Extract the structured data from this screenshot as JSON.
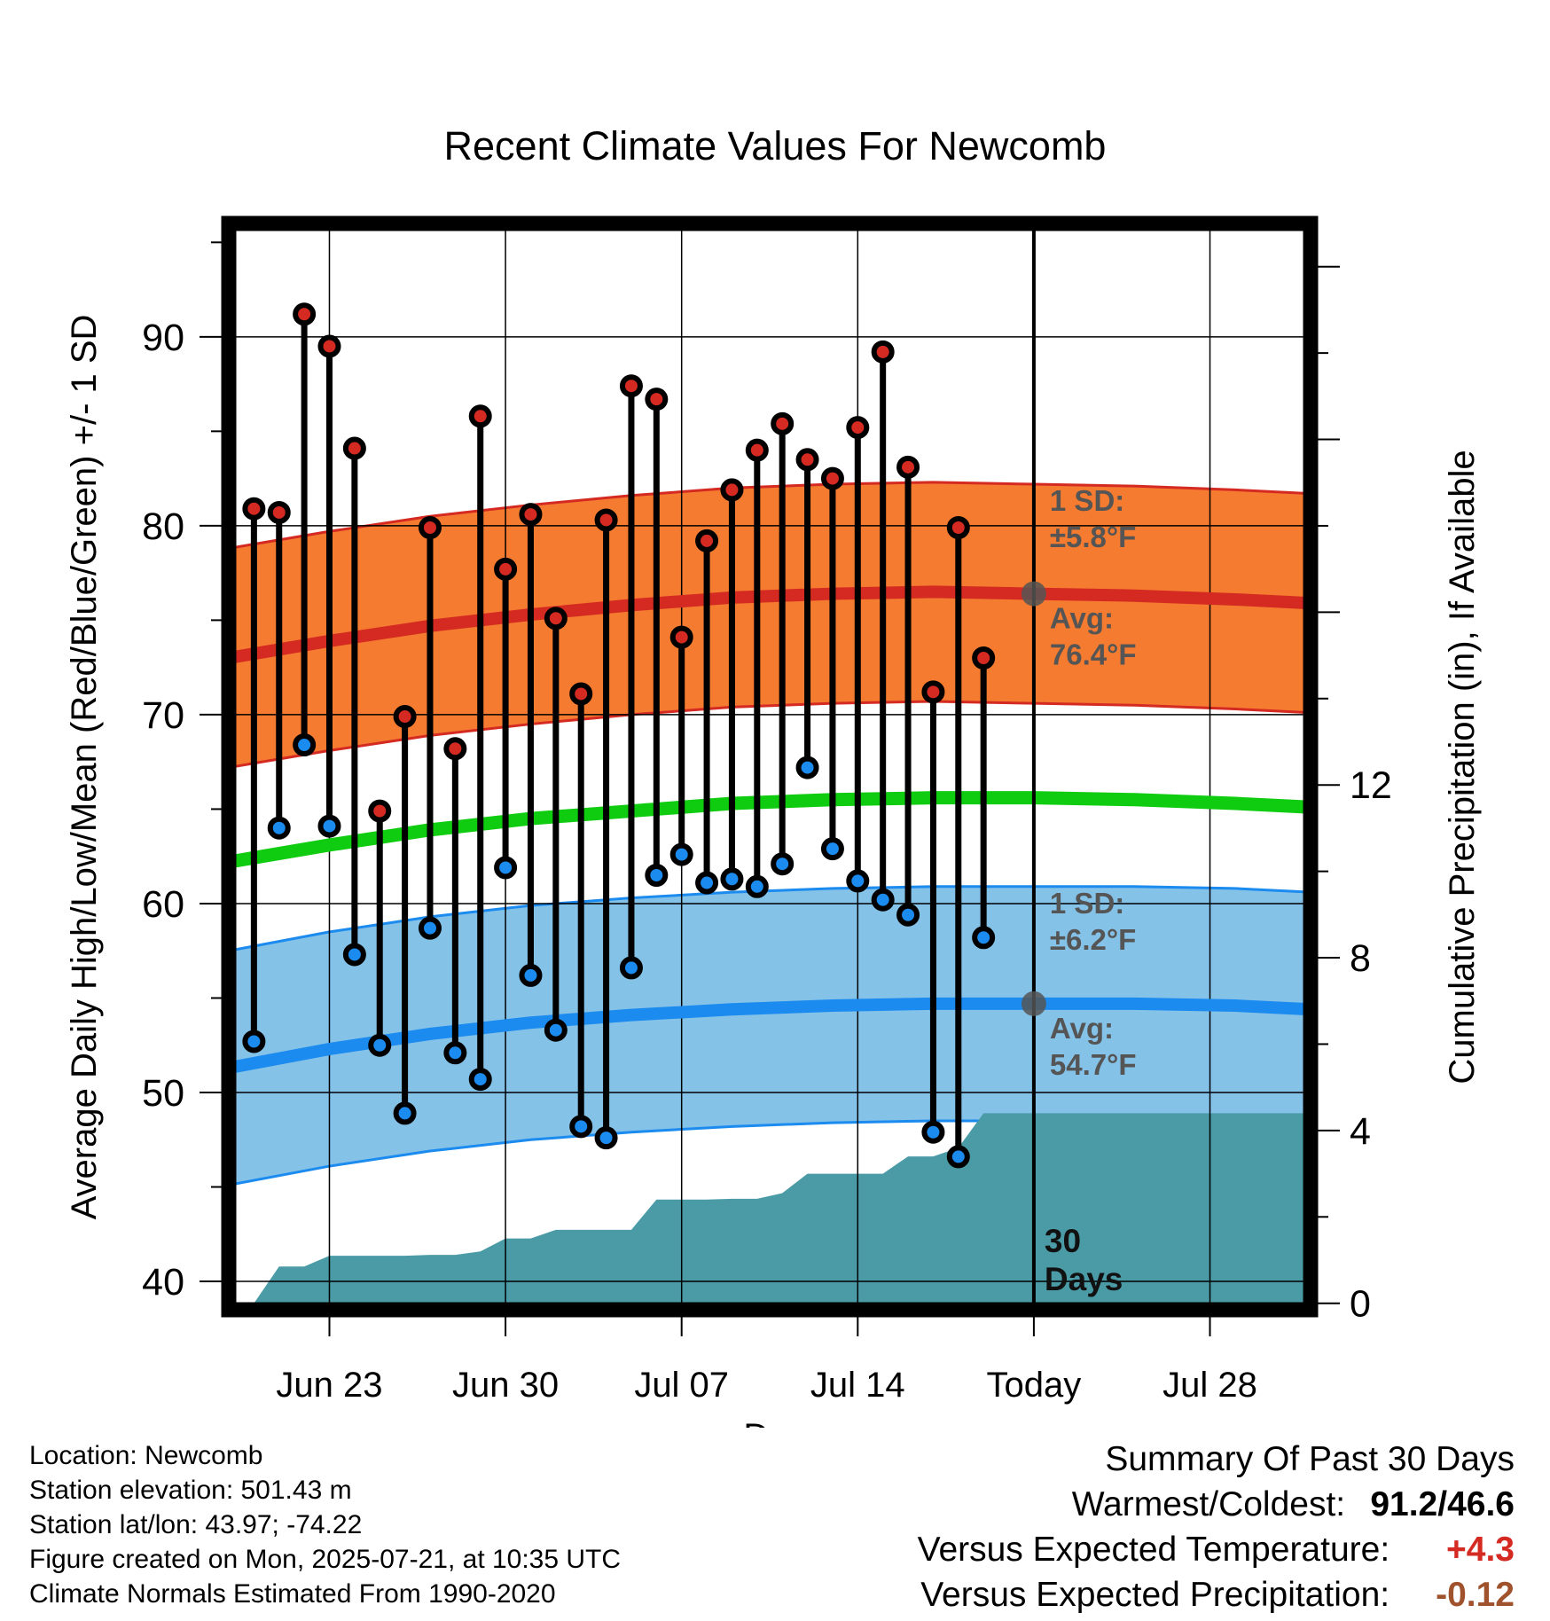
{
  "chart_data": {
    "type": "line",
    "title": "Recent Climate Values For Newcomb",
    "xlabel": "Day",
    "ylabel": "Average Daily High/Low/Mean (Red/Blue/Green) +/- 1 SD",
    "y2label": "Cumulative Precipitation (in), If Available",
    "xlim": [
      "2025-06-19",
      "2025-08-01"
    ],
    "ylim": [
      38.5,
      96
    ],
    "y2lim": [
      -0.15,
      25
    ],
    "yticks": [
      40,
      50,
      60,
      70,
      80,
      90
    ],
    "y2ticks": [
      0,
      4,
      8,
      12
    ],
    "xticks": [
      {
        "date": "2025-06-23",
        "label": "Jun 23"
      },
      {
        "date": "2025-06-30",
        "label": "Jun 30"
      },
      {
        "date": "2025-07-07",
        "label": "Jul 07"
      },
      {
        "date": "2025-07-14",
        "label": "Jul 14"
      },
      {
        "date": "2025-07-21",
        "label": "Today"
      },
      {
        "date": "2025-07-28",
        "label": "Jul 28"
      }
    ],
    "grid": true,
    "today": "2025-07-21",
    "window_label": "30\nDays",
    "highs": [
      {
        "date": "2025-06-20",
        "value": 80.9
      },
      {
        "date": "2025-06-21",
        "value": 80.7
      },
      {
        "date": "2025-06-22",
        "value": 91.2
      },
      {
        "date": "2025-06-23",
        "value": 89.5
      },
      {
        "date": "2025-06-24",
        "value": 84.1
      },
      {
        "date": "2025-06-25",
        "value": 64.9
      },
      {
        "date": "2025-06-26",
        "value": 69.9
      },
      {
        "date": "2025-06-27",
        "value": 79.9
      },
      {
        "date": "2025-06-28",
        "value": 68.2
      },
      {
        "date": "2025-06-29",
        "value": 85.8
      },
      {
        "date": "2025-06-30",
        "value": 77.7
      },
      {
        "date": "2025-07-01",
        "value": 80.6
      },
      {
        "date": "2025-07-02",
        "value": 75.1
      },
      {
        "date": "2025-07-03",
        "value": 71.1
      },
      {
        "date": "2025-07-04",
        "value": 80.3
      },
      {
        "date": "2025-07-05",
        "value": 87.4
      },
      {
        "date": "2025-07-06",
        "value": 86.7
      },
      {
        "date": "2025-07-07",
        "value": 74.1
      },
      {
        "date": "2025-07-08",
        "value": 79.2
      },
      {
        "date": "2025-07-09",
        "value": 81.9
      },
      {
        "date": "2025-07-10",
        "value": 84.0
      },
      {
        "date": "2025-07-11",
        "value": 85.4
      },
      {
        "date": "2025-07-12",
        "value": 83.5
      },
      {
        "date": "2025-07-13",
        "value": 82.5
      },
      {
        "date": "2025-07-14",
        "value": 85.2
      },
      {
        "date": "2025-07-15",
        "value": 89.2
      },
      {
        "date": "2025-07-16",
        "value": 83.1
      },
      {
        "date": "2025-07-17",
        "value": 71.2
      },
      {
        "date": "2025-07-18",
        "value": 79.9
      },
      {
        "date": "2025-07-19",
        "value": 73.0
      }
    ],
    "lows": [
      {
        "date": "2025-06-20",
        "value": 52.7
      },
      {
        "date": "2025-06-21",
        "value": 64.0
      },
      {
        "date": "2025-06-22",
        "value": 68.4
      },
      {
        "date": "2025-06-23",
        "value": 64.1
      },
      {
        "date": "2025-06-24",
        "value": 57.3
      },
      {
        "date": "2025-06-25",
        "value": 52.5
      },
      {
        "date": "2025-06-26",
        "value": 48.9
      },
      {
        "date": "2025-06-27",
        "value": 58.7
      },
      {
        "date": "2025-06-28",
        "value": 52.1
      },
      {
        "date": "2025-06-29",
        "value": 50.7
      },
      {
        "date": "2025-06-30",
        "value": 61.9
      },
      {
        "date": "2025-07-01",
        "value": 56.2
      },
      {
        "date": "2025-07-02",
        "value": 53.3
      },
      {
        "date": "2025-07-03",
        "value": 48.2
      },
      {
        "date": "2025-07-04",
        "value": 47.6
      },
      {
        "date": "2025-07-05",
        "value": 56.6
      },
      {
        "date": "2025-07-06",
        "value": 61.5
      },
      {
        "date": "2025-07-07",
        "value": 62.6
      },
      {
        "date": "2025-07-08",
        "value": 61.1
      },
      {
        "date": "2025-07-09",
        "value": 61.3
      },
      {
        "date": "2025-07-10",
        "value": 60.9
      },
      {
        "date": "2025-07-11",
        "value": 62.1
      },
      {
        "date": "2025-07-12",
        "value": 67.2
      },
      {
        "date": "2025-07-13",
        "value": 62.9
      },
      {
        "date": "2025-07-14",
        "value": 61.2
      },
      {
        "date": "2025-07-15",
        "value": 60.2
      },
      {
        "date": "2025-07-16",
        "value": 59.4
      },
      {
        "date": "2025-07-17",
        "value": 47.9
      },
      {
        "date": "2025-07-18",
        "value": 46.6
      },
      {
        "date": "2025-07-19",
        "value": 58.2
      }
    ],
    "normal_high": {
      "dates": [
        "2025-06-19",
        "2025-06-23",
        "2025-06-27",
        "2025-07-01",
        "2025-07-05",
        "2025-07-09",
        "2025-07-13",
        "2025-07-17",
        "2025-07-21",
        "2025-07-25",
        "2025-07-29",
        "2025-08-01"
      ],
      "values": [
        73.0,
        73.9,
        74.7,
        75.3,
        75.8,
        76.2,
        76.4,
        76.5,
        76.4,
        76.3,
        76.1,
        75.9
      ],
      "sd": 5.8
    },
    "normal_low": {
      "dates": [
        "2025-06-19",
        "2025-06-23",
        "2025-06-27",
        "2025-07-01",
        "2025-07-05",
        "2025-07-09",
        "2025-07-13",
        "2025-07-17",
        "2025-07-21",
        "2025-07-25",
        "2025-07-29",
        "2025-08-01"
      ],
      "values": [
        51.3,
        52.3,
        53.1,
        53.7,
        54.1,
        54.4,
        54.6,
        54.7,
        54.7,
        54.7,
        54.6,
        54.4
      ],
      "sd": 6.2
    },
    "normal_mean": {
      "dates": [
        "2025-06-19",
        "2025-06-23",
        "2025-06-27",
        "2025-07-01",
        "2025-07-05",
        "2025-07-09",
        "2025-07-13",
        "2025-07-17",
        "2025-07-21",
        "2025-07-25",
        "2025-07-29",
        "2025-08-01"
      ],
      "values": [
        62.2,
        63.1,
        63.9,
        64.5,
        64.9,
        65.3,
        65.5,
        65.6,
        65.6,
        65.5,
        65.3,
        65.1
      ]
    },
    "precip_cumulative": [
      {
        "date": "2025-06-19",
        "value": 0.0
      },
      {
        "date": "2025-06-20",
        "value": 0.0
      },
      {
        "date": "2025-06-21",
        "value": 0.85
      },
      {
        "date": "2025-06-22",
        "value": 0.85
      },
      {
        "date": "2025-06-23",
        "value": 1.1
      },
      {
        "date": "2025-06-24",
        "value": 1.1
      },
      {
        "date": "2025-06-25",
        "value": 1.1
      },
      {
        "date": "2025-06-26",
        "value": 1.1
      },
      {
        "date": "2025-06-27",
        "value": 1.12
      },
      {
        "date": "2025-06-28",
        "value": 1.12
      },
      {
        "date": "2025-06-29",
        "value": 1.2
      },
      {
        "date": "2025-06-30",
        "value": 1.5
      },
      {
        "date": "2025-07-01",
        "value": 1.5
      },
      {
        "date": "2025-07-02",
        "value": 1.7
      },
      {
        "date": "2025-07-03",
        "value": 1.7
      },
      {
        "date": "2025-07-04",
        "value": 1.7
      },
      {
        "date": "2025-07-05",
        "value": 1.7
      },
      {
        "date": "2025-07-06",
        "value": 2.4
      },
      {
        "date": "2025-07-07",
        "value": 2.4
      },
      {
        "date": "2025-07-08",
        "value": 2.4
      },
      {
        "date": "2025-07-09",
        "value": 2.42
      },
      {
        "date": "2025-07-10",
        "value": 2.42
      },
      {
        "date": "2025-07-11",
        "value": 2.55
      },
      {
        "date": "2025-07-12",
        "value": 3.0
      },
      {
        "date": "2025-07-13",
        "value": 3.0
      },
      {
        "date": "2025-07-14",
        "value": 3.0
      },
      {
        "date": "2025-07-15",
        "value": 3.0
      },
      {
        "date": "2025-07-16",
        "value": 3.4
      },
      {
        "date": "2025-07-17",
        "value": 3.4
      },
      {
        "date": "2025-07-18",
        "value": 3.6
      },
      {
        "date": "2025-07-19",
        "value": 4.4
      },
      {
        "date": "2025-08-01",
        "value": 4.4
      }
    ],
    "annotations": {
      "high_sd": "1 SD:\n±5.8°F",
      "high_avg": "Avg:\n76.4°F",
      "low_sd": "1 SD:\n±6.2°F",
      "low_avg": "Avg:\n54.7°F"
    },
    "colors": {
      "high_band": "#f47b2f",
      "high_line": "#d42a22",
      "low_band": "#85c2e8",
      "low_line": "#1b8bef",
      "mean_line": "#10cc10",
      "precip": "#4a9ba6",
      "high_dot": "#d42a22",
      "low_dot": "#1b8bef",
      "annotation": "#555555"
    }
  },
  "info": {
    "location": "Location: Newcomb",
    "elevation": "Station elevation: 501.43 m",
    "latlon": "Station lat/lon: 43.97; -74.22",
    "created": "Figure created on Mon, 2025-07-21, at 10:35 UTC",
    "normals": "Climate Normals Estimated From 1990-2020"
  },
  "summary": {
    "heading": "Summary Of Past 30 Days",
    "warm_cold_label": "Warmest/Coldest:",
    "warm_cold_value": "91.2/46.6",
    "temp_label": "Versus Expected Temperature:",
    "temp_value": "+4.3",
    "temp_color": "#d42a22",
    "precip_label": "Versus Expected Precipitation:",
    "precip_value": "-0.12",
    "precip_color": "#a0522d"
  }
}
